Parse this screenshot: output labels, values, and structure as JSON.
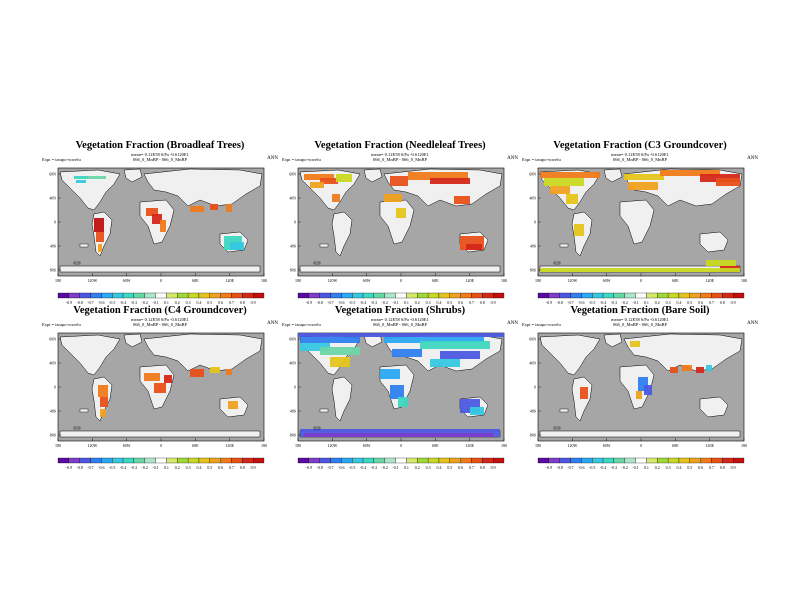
{
  "common": {
    "expt": "Expt = tarapo-wxrefu",
    "season": "ANN",
    "lat_labels": [
      "60N",
      "40N",
      "0",
      "40S",
      "80S"
    ],
    "lon_labels": [
      "180",
      "120W",
      "60W",
      "0",
      "60E",
      "120E",
      "180"
    ],
    "colorbar_labels": [
      "-0.9",
      "-0.8",
      "-0.7",
      "-0.6",
      "-0.5",
      "-0.4",
      "-0.3",
      "-0.2",
      "-0.1",
      "0.1",
      "0.2",
      "0.3",
      "0.4",
      "0.5",
      "0.6",
      "0.7",
      "0.8",
      "0.9"
    ],
    "colorbar_colors": [
      "#5a0aa0",
      "#7a3ec8",
      "#4a58e0",
      "#2f7ff0",
      "#2aa8f0",
      "#36c8e0",
      "#3fd7c0",
      "#6ad6a8",
      "#aee4c8",
      "#ffffff",
      "#d4e86a",
      "#a0d63a",
      "#c8d820",
      "#e4c41a",
      "#f0a020",
      "#f07a1a",
      "#e8501a",
      "#d4281a",
      "#c01010"
    ]
  },
  "colors": {
    "ocean": "#a6a6a6",
    "land": "#f0f0f0"
  },
  "panels": [
    {
      "title": "Vegetation Fraction (Broadleaf Trees)",
      "stat": "mean= 0.12E58 6/Pa -0.6120E1",
      "comparison": "066_0_MnBP - 066_0_MnBP"
    },
    {
      "title": "Vegetation Fraction (Needleleaf Trees)",
      "stat": "mean= 0.12E58 6/Pa -0.6120E1",
      "comparison": "066_0_MnBP - 066_0_MnBP"
    },
    {
      "title": "Vegetation Fraction (C3 Groundcover)",
      "stat": "mean= 0.12E58 6/Pa -0.6120E1",
      "comparison": "066_0_MnBP - 066_0_MnBP"
    },
    {
      "title": "Vegetation Fraction (C4 Groundcover)",
      "stat": "mean= 0.12E58 6/Pa -0.6120E1",
      "comparison": "066_0_MnBP - 066_0_MnBP"
    },
    {
      "title": "Vegetation Fraction (Shrubs)",
      "stat": "mean= 0.12E58 6/Pa -0.6120E1",
      "comparison": "066_0_MnBP - 066_0_MnBP"
    },
    {
      "title": "Vegetation Fraction (Bare Soil)",
      "stat": "mean= 0.12E58 6/Pa -0.6120E1",
      "comparison": "066_0_MnBP - 066_0_MnBP"
    }
  ]
}
